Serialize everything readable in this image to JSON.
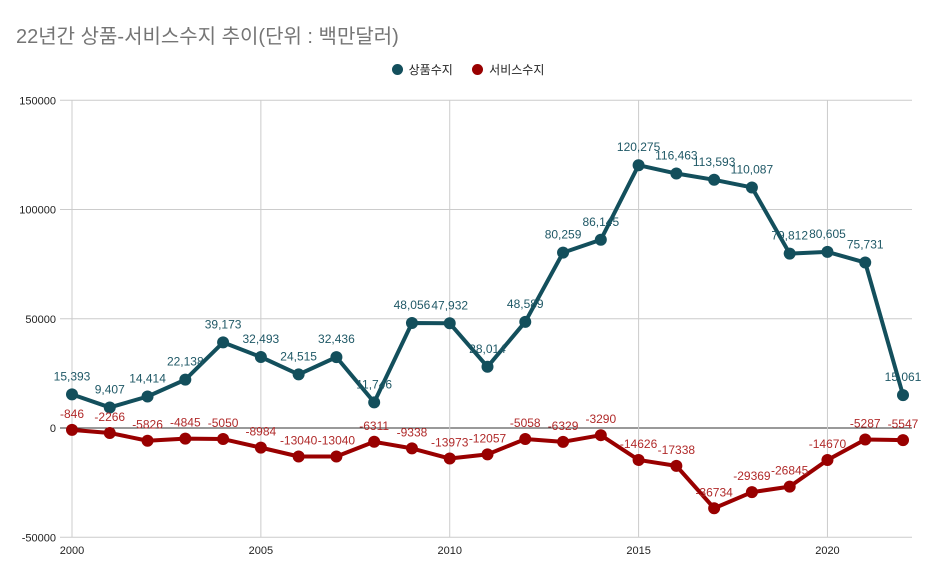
{
  "chart_data": {
    "type": "line",
    "title": "22년간 상품-서비스수지 추이(단위 : 백만달러)",
    "xlabel": "",
    "ylabel": "",
    "x": [
      2000,
      2001,
      2002,
      2003,
      2004,
      2005,
      2006,
      2007,
      2008,
      2009,
      2010,
      2011,
      2012,
      2013,
      2014,
      2015,
      2016,
      2017,
      2018,
      2019,
      2020,
      2021,
      2022
    ],
    "xticks": [
      "2000",
      "2005",
      "2010",
      "2015",
      "2020"
    ],
    "yticks": [
      "150000",
      "100000",
      "50000",
      "0",
      "-50000"
    ],
    "ylim": [
      -50000,
      150000
    ],
    "grid": true,
    "legend_position": "top",
    "series": [
      {
        "name": "상품수지",
        "color": "#134f5c",
        "values": [
          15393,
          9407,
          14414,
          22138,
          39173,
          32493,
          24515,
          32436,
          11746,
          48056,
          47932,
          28014,
          48589,
          80259,
          86145,
          120275,
          116463,
          113593,
          110087,
          79812,
          80605,
          75731,
          15061
        ],
        "labels": [
          "15,393",
          "9,407",
          "14,414",
          "22,138",
          "39,173",
          "32,493",
          "24,515",
          "32,436",
          "11,746",
          "48,056",
          "47,932",
          "28,014",
          "48,589",
          "80,259",
          "86,145",
          "120,275",
          "116,463",
          "113,593",
          "110,087",
          "79,812",
          "80,605",
          "75,731",
          "15,061"
        ]
      },
      {
        "name": "서비스수지",
        "color": "#990000",
        "values": [
          -846,
          -2266,
          -5826,
          -4845,
          -5050,
          -8984,
          -13040,
          -13040,
          -6311,
          -9338,
          -13973,
          -12057,
          -5058,
          -6329,
          -3290,
          -14626,
          -17338,
          -36734,
          -29369,
          -26845,
          -14670,
          -5287,
          -5547
        ],
        "labels": [
          "-846",
          "-2266",
          "-5826",
          "-4845",
          "-5050",
          "-8984",
          "-13040",
          "-13040",
          "-6311",
          "-9338",
          "-13973",
          "-12057",
          "-5058",
          "-6329",
          "-3290",
          "-14626",
          "-17338",
          "-36734",
          "-29369",
          "-26845",
          "-14670",
          "-5287",
          "-5547"
        ]
      }
    ]
  }
}
